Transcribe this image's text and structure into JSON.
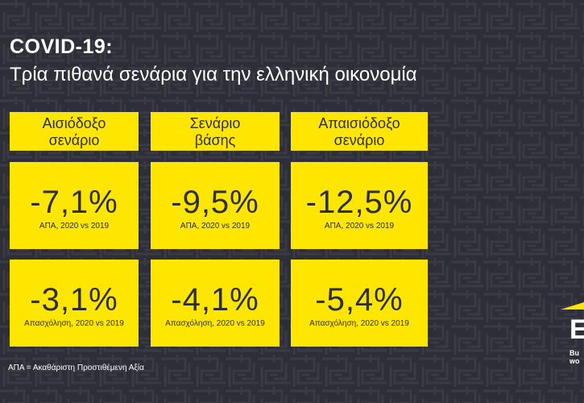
{
  "title": "COVID-19:",
  "subtitle": "Τρία πιθανά σενάρια για την ελληνική οικονομία",
  "scenarios": [
    {
      "line1": "Αισιόδοξο",
      "line2": "σενάριο",
      "gdp_value": "-7,1%",
      "gdp_caption": "ΑΠΑ, 2020 vs 2019",
      "emp_value": "-3,1%",
      "emp_caption": "Απασχόληση, 2020 vs 2019"
    },
    {
      "line1": "Σενάριο",
      "line2": "βάσης",
      "gdp_value": "-9,5%",
      "gdp_caption": "ΑΠΑ, 2020 vs 2019",
      "emp_value": "-4,1%",
      "emp_caption": "Απασχόληση, 2020 vs 2019"
    },
    {
      "line1": "Απαισιόδοξο",
      "line2": "σενάριο",
      "gdp_value": "-12,5%",
      "gdp_caption": "ΑΠΑ, 2020 vs 2019",
      "emp_value": "-5,4%",
      "emp_caption": "Απασχόληση, 2020 vs 2019"
    }
  ],
  "footnote": "ΑΠΑ = Ακαθάριστη Προστιθέμενη Αξία",
  "logo": {
    "mark": "E",
    "text_line1": "Bu",
    "text_line2": "wo"
  },
  "colors": {
    "background": "#2e2e38",
    "accent": "#ffe600",
    "text_dark": "#2e2e38"
  }
}
